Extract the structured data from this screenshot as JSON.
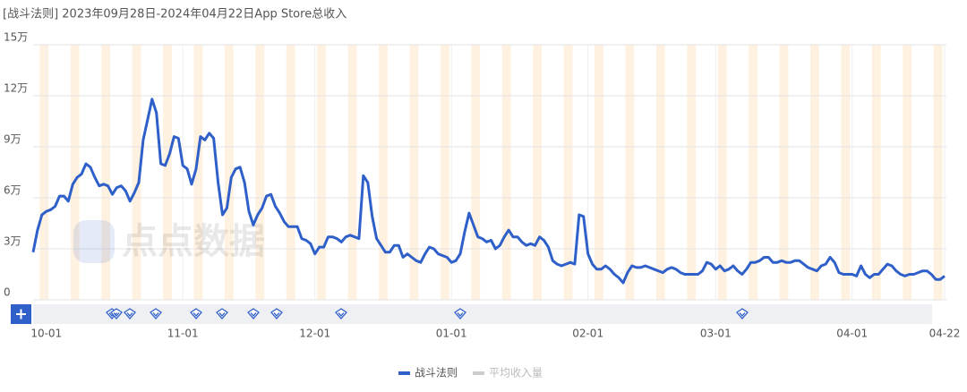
{
  "chart_data": {
    "type": "line",
    "title": "[战斗法则]  2023年09月28日-2024年04月22日App Store总收入",
    "watermark": "点点数据",
    "x": [
      "09-28",
      "09-29",
      "09-30",
      "10-01",
      "10-02",
      "10-03",
      "10-04",
      "10-05",
      "10-06",
      "10-07",
      "10-08",
      "10-09",
      "10-10",
      "10-11",
      "10-12",
      "10-13",
      "10-14",
      "10-15",
      "10-16",
      "10-17",
      "10-18",
      "10-19",
      "10-20",
      "10-21",
      "10-22",
      "10-23",
      "10-24",
      "10-25",
      "10-26",
      "10-27",
      "10-28",
      "10-29",
      "10-30",
      "10-31",
      "11-01",
      "11-02",
      "11-03",
      "11-04",
      "11-05",
      "11-06",
      "11-07",
      "11-08",
      "11-09",
      "11-10",
      "11-11",
      "11-12",
      "11-13",
      "11-14",
      "11-15",
      "11-16",
      "11-17",
      "11-18",
      "11-19",
      "11-20",
      "11-21",
      "11-22",
      "11-23",
      "11-24",
      "11-25",
      "11-26",
      "11-27",
      "11-28",
      "11-29",
      "11-30",
      "12-01",
      "12-02",
      "12-03",
      "12-04",
      "12-05",
      "12-06",
      "12-07",
      "12-08",
      "12-09",
      "12-10",
      "12-11",
      "12-12",
      "12-13",
      "12-14",
      "12-15",
      "12-16",
      "12-17",
      "12-18",
      "12-19",
      "12-20",
      "12-21",
      "12-22",
      "12-23",
      "12-24",
      "12-25",
      "12-26",
      "12-27",
      "12-28",
      "12-29",
      "12-30",
      "12-31",
      "01-01",
      "01-02",
      "01-03",
      "01-04",
      "01-05",
      "01-06",
      "01-07",
      "01-08",
      "01-09",
      "01-10",
      "01-11",
      "01-12",
      "01-13",
      "01-14",
      "01-15",
      "01-16",
      "01-17",
      "01-18",
      "01-19",
      "01-20",
      "01-21",
      "01-22",
      "01-23",
      "01-24",
      "01-25",
      "01-26",
      "01-27",
      "01-28",
      "01-29",
      "01-30",
      "01-31",
      "02-01",
      "02-02",
      "02-03",
      "02-04",
      "02-05",
      "02-06",
      "02-07",
      "02-08",
      "02-09",
      "02-10",
      "02-11",
      "02-12",
      "02-13",
      "02-14",
      "02-15",
      "02-16",
      "02-17",
      "02-18",
      "02-19",
      "02-20",
      "02-21",
      "02-22",
      "02-23",
      "02-24",
      "02-25",
      "02-26",
      "02-27",
      "02-28",
      "02-29",
      "03-01",
      "03-02",
      "03-03",
      "03-04",
      "03-05",
      "03-06",
      "03-07",
      "03-08",
      "03-09",
      "03-10",
      "03-11",
      "03-12",
      "03-13",
      "03-14",
      "03-15",
      "03-16",
      "03-17",
      "03-18",
      "03-19",
      "03-20",
      "03-21",
      "03-22",
      "03-23",
      "03-24",
      "03-25",
      "03-26",
      "03-27",
      "03-28",
      "03-29",
      "03-30",
      "03-31",
      "04-01",
      "04-02",
      "04-03",
      "04-04",
      "04-05",
      "04-06",
      "04-07",
      "04-08",
      "04-09",
      "04-10",
      "04-11",
      "04-12",
      "04-13",
      "04-14",
      "04-15",
      "04-16",
      "04-17",
      "04-18",
      "04-19",
      "04-20",
      "04-21",
      "04-22"
    ],
    "series": [
      {
        "name": "战斗法则",
        "color": "#2f5fc8",
        "values": [
          28000,
          41000,
          50000,
          52000,
          53000,
          55000,
          61000,
          61000,
          58000,
          68000,
          72000,
          74000,
          80000,
          78000,
          72000,
          67000,
          68000,
          67000,
          62000,
          66000,
          67000,
          64000,
          58000,
          63000,
          69000,
          94000,
          106000,
          118000,
          110000,
          80000,
          79000,
          86000,
          96000,
          95000,
          79000,
          77000,
          68000,
          77000,
          96000,
          94000,
          98000,
          95000,
          69000,
          50000,
          54000,
          72000,
          77000,
          78000,
          69000,
          52000,
          44000,
          50000,
          54000,
          61000,
          62000,
          55000,
          51000,
          46000,
          43000,
          43000,
          43000,
          36000,
          35000,
          33000,
          27000,
          31000,
          31000,
          37000,
          37000,
          36000,
          34000,
          37000,
          38000,
          37000,
          36000,
          73000,
          69000,
          49000,
          36000,
          32000,
          28000,
          28000,
          32000,
          32000,
          25000,
          27000,
          25000,
          23000,
          22000,
          27000,
          31000,
          30000,
          27000,
          26000,
          25000,
          22000,
          23000,
          27000,
          40000,
          51000,
          44000,
          37000,
          36000,
          34000,
          35000,
          30000,
          32000,
          37000,
          41000,
          37000,
          37000,
          34000,
          32000,
          33000,
          32000,
          37000,
          35000,
          31000,
          23000,
          21000,
          20000,
          21000,
          22000,
          21000,
          50000,
          49000,
          27000,
          21000,
          18000,
          18000,
          20000,
          18000,
          15000,
          13000,
          10000,
          16000,
          20000,
          19000,
          19000,
          20000,
          19000,
          18000,
          17000,
          16000,
          18000,
          19000,
          18000,
          16000,
          15000,
          15000,
          15000,
          15000,
          17000,
          22000,
          21000,
          18000,
          20000,
          17000,
          18000,
          20000,
          17000,
          15000,
          18000,
          22000,
          22000,
          23000,
          25000,
          25000,
          22000,
          22000,
          23000,
          22000,
          22000,
          23000,
          23000,
          21000,
          19000,
          18000,
          17000,
          20000,
          21000,
          25000,
          22000,
          16000,
          15000,
          15000,
          15000,
          14000,
          20000,
          15000,
          13000,
          15000,
          15000,
          18000,
          21000,
          20000,
          17000,
          15000,
          14000,
          15000,
          15000,
          16000,
          17000,
          17000,
          15000,
          12000,
          12000,
          14000
        ]
      }
    ],
    "inactive_legend": {
      "name": "平均收入量",
      "color": "#cccccc"
    },
    "xticks": [
      "10-01",
      "11-01",
      "12-01",
      "01-01",
      "02-01",
      "03-01",
      "04-01",
      "04-22"
    ],
    "ylim": [
      0,
      150000
    ],
    "yticks": [
      0,
      {
        "value": 30000,
        "label": "3万"
      },
      {
        "value": 60000,
        "label": "6万"
      },
      {
        "value": 90000,
        "label": "9万"
      },
      {
        "value": 120000,
        "label": "12万"
      },
      {
        "value": 150000,
        "label": "15万"
      }
    ],
    "grid": true
  }
}
